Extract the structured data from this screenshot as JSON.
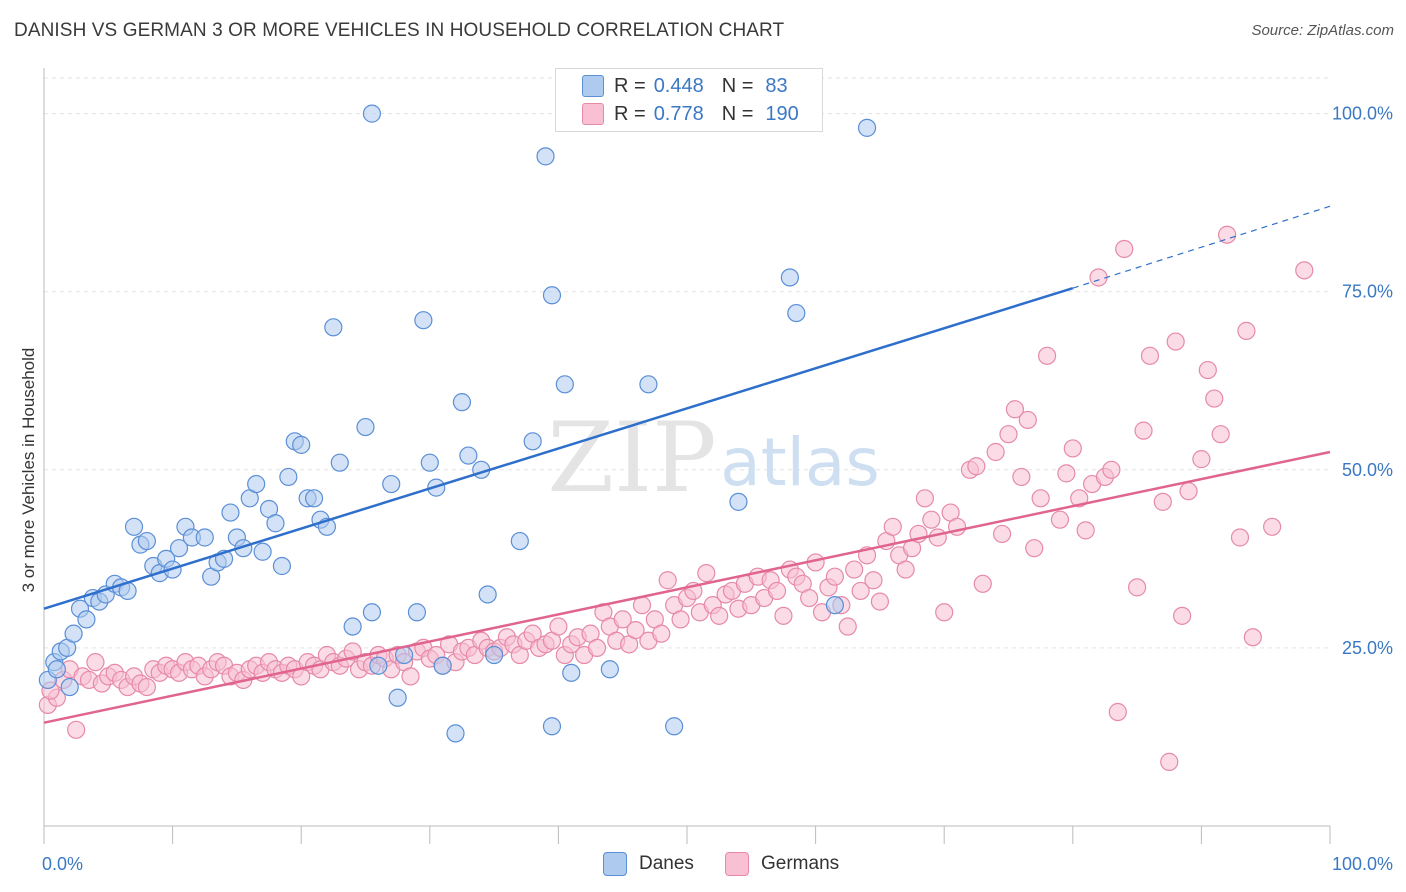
{
  "title": "DANISH VS GERMAN 3 OR MORE VEHICLES IN HOUSEHOLD CORRELATION CHART",
  "source": "Source: ZipAtlas.com",
  "watermark": {
    "zip": "ZIP",
    "atlas": "atlas"
  },
  "colors": {
    "danes_fill": "#aecbef",
    "danes_stroke": "#5b8fd6",
    "danes_line": "#2f6fcc",
    "germans_fill": "#f8c0d2",
    "germans_stroke": "#e68aa8",
    "germans_line": "#e0648e",
    "axis_label": "#3b78c4",
    "grid": "#e3e3e3"
  },
  "legend": {
    "rows": [
      {
        "r_label": "R =",
        "r_value": "0.448",
        "n_label": "N =",
        "n_value": "83"
      },
      {
        "r_label": "R =",
        "r_value": "0.778",
        "n_label": "N =",
        "n_value": "190"
      }
    ]
  },
  "chart_data": {
    "type": "scatter",
    "title": "DANISH VS GERMAN 3 OR MORE VEHICLES IN HOUSEHOLD CORRELATION CHART",
    "xlabel": "",
    "ylabel": "3 or more Vehicles in Household",
    "xlim": [
      0,
      100
    ],
    "ylim": [
      0,
      105
    ],
    "x_tick_labels": [
      "0.0%",
      "100.0%"
    ],
    "y_tick_labels": [
      "25.0%",
      "50.0%",
      "75.0%",
      "100.0%"
    ],
    "y_ticks": [
      25,
      50,
      75,
      100
    ],
    "grid": true,
    "legend_position": "bottom",
    "series": [
      {
        "name": "Danes",
        "r": 0.448,
        "n": 83,
        "trend": {
          "x0": 0,
          "y0": 30.5,
          "x1": 80,
          "y1": 75.5,
          "dashed_to_x": 100,
          "dashed_to_y": 87
        },
        "points": [
          [
            0.3,
            20.5
          ],
          [
            0.8,
            23
          ],
          [
            1.3,
            24.5
          ],
          [
            1.8,
            25
          ],
          [
            2.3,
            27
          ],
          [
            2.8,
            30.5
          ],
          [
            3.3,
            29
          ],
          [
            3.8,
            32
          ],
          [
            4.3,
            31.5
          ],
          [
            4.8,
            32.5
          ],
          [
            5.5,
            34
          ],
          [
            6,
            33.5
          ],
          [
            6.5,
            33
          ],
          [
            7,
            42
          ],
          [
            7.5,
            39.5
          ],
          [
            8,
            40
          ],
          [
            8.5,
            36.5
          ],
          [
            9,
            35.5
          ],
          [
            9.5,
            37.5
          ],
          [
            10,
            36
          ],
          [
            10.5,
            39
          ],
          [
            11,
            42
          ],
          [
            11.5,
            40.5
          ],
          [
            12.5,
            40.5
          ],
          [
            13,
            35
          ],
          [
            13.5,
            37
          ],
          [
            14,
            37.5
          ],
          [
            14.5,
            44
          ],
          [
            15,
            40.5
          ],
          [
            15.5,
            39
          ],
          [
            16,
            46
          ],
          [
            16.5,
            48
          ],
          [
            17,
            38.5
          ],
          [
            17.5,
            44.5
          ],
          [
            18,
            42.5
          ],
          [
            18.5,
            36.5
          ],
          [
            19,
            49
          ],
          [
            19.5,
            54
          ],
          [
            20,
            53.5
          ],
          [
            20.5,
            46
          ],
          [
            21,
            46
          ],
          [
            21.5,
            43
          ],
          [
            22,
            42
          ],
          [
            22.5,
            70
          ],
          [
            23,
            51
          ],
          [
            24,
            28
          ],
          [
            25,
            56
          ],
          [
            25.5,
            100
          ],
          [
            25.5,
            30
          ],
          [
            26,
            22.5
          ],
          [
            27,
            48
          ],
          [
            27.5,
            18
          ],
          [
            28,
            24
          ],
          [
            29,
            30
          ],
          [
            29.5,
            71
          ],
          [
            30,
            51
          ],
          [
            30.5,
            47.5
          ],
          [
            31,
            22.5
          ],
          [
            32,
            13
          ],
          [
            32.5,
            59.5
          ],
          [
            33,
            52
          ],
          [
            34,
            50
          ],
          [
            34.5,
            32.5
          ],
          [
            35,
            24
          ],
          [
            37,
            40
          ],
          [
            38,
            54
          ],
          [
            39,
            94
          ],
          [
            39.5,
            74.5
          ],
          [
            39.5,
            14
          ],
          [
            40.5,
            62
          ],
          [
            41,
            21.5
          ],
          [
            44,
            22
          ],
          [
            47,
            62
          ],
          [
            49,
            14
          ],
          [
            54,
            45.5
          ],
          [
            58,
            77
          ],
          [
            58.5,
            72
          ],
          [
            61.5,
            31
          ],
          [
            64,
            98
          ],
          [
            2,
            19.5
          ],
          [
            1,
            22
          ]
        ]
      },
      {
        "name": "Germans",
        "r": 0.778,
        "n": 190,
        "trend": {
          "x0": 0,
          "y0": 14.5,
          "x1": 100,
          "y1": 52.5
        },
        "points": [
          [
            0.3,
            17
          ],
          [
            1,
            18
          ],
          [
            1.5,
            20.5
          ],
          [
            2,
            22
          ],
          [
            2.5,
            13.5
          ],
          [
            3,
            21
          ],
          [
            3.5,
            20.5
          ],
          [
            4,
            23
          ],
          [
            4.5,
            20
          ],
          [
            5,
            21
          ],
          [
            5.5,
            21.5
          ],
          [
            6,
            20.5
          ],
          [
            6.5,
            19.5
          ],
          [
            7,
            21
          ],
          [
            7.5,
            20
          ],
          [
            8,
            19.5
          ],
          [
            8.5,
            22
          ],
          [
            9,
            21.5
          ],
          [
            9.5,
            22.5
          ],
          [
            10,
            22
          ],
          [
            10.5,
            21.5
          ],
          [
            11,
            23
          ],
          [
            11.5,
            22
          ],
          [
            12,
            22.5
          ],
          [
            12.5,
            21
          ],
          [
            13,
            22
          ],
          [
            13.5,
            23
          ],
          [
            14,
            22.5
          ],
          [
            14.5,
            21
          ],
          [
            15,
            21.5
          ],
          [
            15.5,
            20.5
          ],
          [
            16,
            22
          ],
          [
            16.5,
            22.5
          ],
          [
            17,
            21.5
          ],
          [
            17.5,
            23
          ],
          [
            18,
            22
          ],
          [
            18.5,
            21.5
          ],
          [
            19,
            22.5
          ],
          [
            19.5,
            22
          ],
          [
            20,
            21
          ],
          [
            20.5,
            23
          ],
          [
            21,
            22.5
          ],
          [
            21.5,
            22
          ],
          [
            22,
            24
          ],
          [
            22.5,
            23
          ],
          [
            23,
            22.5
          ],
          [
            23.5,
            23.5
          ],
          [
            24,
            24.5
          ],
          [
            24.5,
            22
          ],
          [
            25,
            23
          ],
          [
            25.5,
            22.5
          ],
          [
            26,
            24
          ],
          [
            26.5,
            23.5
          ],
          [
            27,
            22
          ],
          [
            27.5,
            24
          ],
          [
            28,
            23
          ],
          [
            28.5,
            21
          ],
          [
            29,
            24.5
          ],
          [
            29.5,
            25
          ],
          [
            30,
            23.5
          ],
          [
            30.5,
            24
          ],
          [
            31,
            22.5
          ],
          [
            31.5,
            25.5
          ],
          [
            32,
            23
          ],
          [
            32.5,
            24.5
          ],
          [
            33,
            25
          ],
          [
            33.5,
            24
          ],
          [
            34,
            26
          ],
          [
            34.5,
            25
          ],
          [
            35,
            24.5
          ],
          [
            35.5,
            25
          ],
          [
            36,
            26.5
          ],
          [
            36.5,
            25.5
          ],
          [
            37,
            24
          ],
          [
            37.5,
            26
          ],
          [
            38,
            27
          ],
          [
            38.5,
            25
          ],
          [
            39,
            25.5
          ],
          [
            39.5,
            26
          ],
          [
            40,
            28
          ],
          [
            40.5,
            24
          ],
          [
            41,
            25.5
          ],
          [
            41.5,
            26.5
          ],
          [
            42,
            24
          ],
          [
            42.5,
            27
          ],
          [
            43,
            25
          ],
          [
            43.5,
            30
          ],
          [
            44,
            28
          ],
          [
            44.5,
            26
          ],
          [
            45,
            29
          ],
          [
            45.5,
            25.5
          ],
          [
            46,
            27.5
          ],
          [
            46.5,
            31
          ],
          [
            47,
            26
          ],
          [
            47.5,
            29
          ],
          [
            48,
            27
          ],
          [
            48.5,
            34.5
          ],
          [
            49,
            31
          ],
          [
            49.5,
            29
          ],
          [
            50,
            32
          ],
          [
            50.5,
            33
          ],
          [
            51,
            30
          ],
          [
            51.5,
            35.5
          ],
          [
            52,
            31
          ],
          [
            52.5,
            29.5
          ],
          [
            53,
            32.5
          ],
          [
            53.5,
            33
          ],
          [
            54,
            30.5
          ],
          [
            54.5,
            34
          ],
          [
            55,
            31
          ],
          [
            55.5,
            35
          ],
          [
            56,
            32
          ],
          [
            56.5,
            34.5
          ],
          [
            57,
            33
          ],
          [
            57.5,
            29.5
          ],
          [
            58,
            36
          ],
          [
            58.5,
            35
          ],
          [
            59,
            34
          ],
          [
            59.5,
            32
          ],
          [
            60,
            37
          ],
          [
            60.5,
            30
          ],
          [
            61,
            33.5
          ],
          [
            61.5,
            35
          ],
          [
            62,
            31
          ],
          [
            62.5,
            28
          ],
          [
            63,
            36
          ],
          [
            63.5,
            33
          ],
          [
            64,
            38
          ],
          [
            64.5,
            34.5
          ],
          [
            65,
            31.5
          ],
          [
            65.5,
            40
          ],
          [
            66,
            42
          ],
          [
            66.5,
            38
          ],
          [
            67,
            36
          ],
          [
            67.5,
            39
          ],
          [
            68,
            41
          ],
          [
            68.5,
            46
          ],
          [
            69,
            43
          ],
          [
            69.5,
            40.5
          ],
          [
            70,
            30
          ],
          [
            70.5,
            44
          ],
          [
            71,
            42
          ],
          [
            72,
            50
          ],
          [
            72.5,
            50.5
          ],
          [
            73,
            34
          ],
          [
            74,
            52.5
          ],
          [
            74.5,
            41
          ],
          [
            75,
            55
          ],
          [
            75.5,
            58.5
          ],
          [
            76,
            49
          ],
          [
            76.5,
            57
          ],
          [
            77,
            39
          ],
          [
            77.5,
            46
          ],
          [
            78,
            66
          ],
          [
            79,
            43
          ],
          [
            79.5,
            49.5
          ],
          [
            80,
            53
          ],
          [
            80.5,
            46
          ],
          [
            81,
            41.5
          ],
          [
            81.5,
            48
          ],
          [
            82,
            77
          ],
          [
            82.5,
            49
          ],
          [
            83,
            50
          ],
          [
            83.5,
            16
          ],
          [
            84,
            81
          ],
          [
            85,
            33.5
          ],
          [
            85.5,
            55.5
          ],
          [
            86,
            66
          ],
          [
            87,
            45.5
          ],
          [
            87.5,
            9
          ],
          [
            88,
            68
          ],
          [
            88.5,
            29.5
          ],
          [
            89,
            47
          ],
          [
            90,
            51.5
          ],
          [
            90.5,
            64
          ],
          [
            91,
            60
          ],
          [
            91.5,
            55
          ],
          [
            92,
            83
          ],
          [
            93,
            40.5
          ],
          [
            93.5,
            69.5
          ],
          [
            94,
            26.5
          ],
          [
            95.5,
            42
          ],
          [
            98,
            78
          ],
          [
            0.5,
            19
          ]
        ]
      }
    ]
  },
  "bottom_legend": [
    {
      "label": "Danes"
    },
    {
      "label": "Germans"
    }
  ]
}
